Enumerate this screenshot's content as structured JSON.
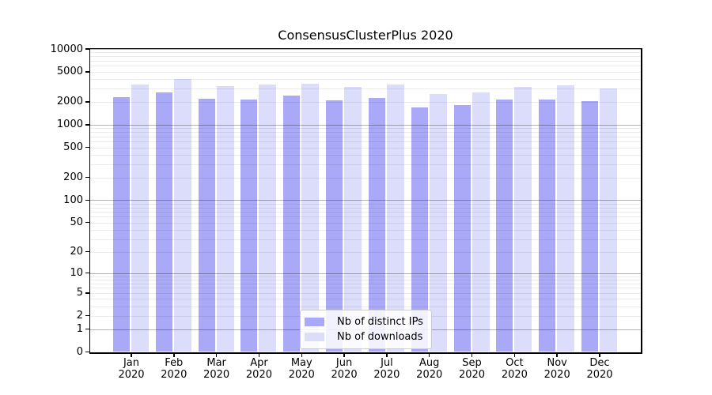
{
  "chart_data": {
    "type": "bar",
    "title": "ConsensusClusterPlus 2020",
    "y_scale": "log1p",
    "ylim": [
      0,
      10000
    ],
    "y_ticks": [
      0,
      1,
      2,
      5,
      10,
      20,
      50,
      100,
      200,
      500,
      1000,
      2000,
      5000,
      10000
    ],
    "x_ticks": [
      {
        "month": "Jan",
        "year": "2020"
      },
      {
        "month": "Feb",
        "year": "2020"
      },
      {
        "month": "Mar",
        "year": "2020"
      },
      {
        "month": "Apr",
        "year": "2020"
      },
      {
        "month": "May",
        "year": "2020"
      },
      {
        "month": "Jun",
        "year": "2020"
      },
      {
        "month": "Jul",
        "year": "2020"
      },
      {
        "month": "Aug",
        "year": "2020"
      },
      {
        "month": "Sep",
        "year": "2020"
      },
      {
        "month": "Oct",
        "year": "2020"
      },
      {
        "month": "Nov",
        "year": "2020"
      },
      {
        "month": "Dec",
        "year": "2020"
      }
    ],
    "series": [
      {
        "key": "distinct-ips",
        "name": "Nb of distinct IPs",
        "color": "#a9a9f8",
        "values": [
          2320,
          2680,
          2200,
          2150,
          2430,
          2100,
          2260,
          1700,
          1830,
          2150,
          2150,
          2060
        ]
      },
      {
        "key": "downloads",
        "name": "Nb of downloads",
        "color": "#dbddfb",
        "values": [
          3400,
          4050,
          3230,
          3400,
          3490,
          3160,
          3400,
          2560,
          2680,
          3160,
          3310,
          3010
        ]
      }
    ],
    "grid": {
      "major_values": [
        1,
        10,
        100,
        1000,
        10000
      ],
      "minor_multiples": [
        2,
        3,
        4,
        5,
        6,
        7,
        8,
        9
      ],
      "major_color": "rgba(0,0,0,0.30)",
      "minor_color": "rgba(0,0,0,0.08)"
    },
    "legend": {
      "position": "inside-bottom-center"
    }
  }
}
